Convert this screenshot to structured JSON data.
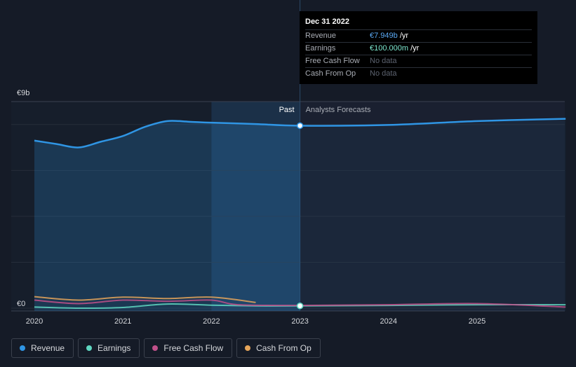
{
  "chart_data": {
    "type": "area",
    "y_top_label": "€9b",
    "y_zero_label": "€0",
    "ylim": [
      0,
      9
    ],
    "y_unit": "€b",
    "x_ticks": [
      "2020",
      "2021",
      "2022",
      "2023",
      "2024",
      "2025"
    ],
    "past_label": "Past",
    "forecast_label": "Analysts Forecasts",
    "divider_date": 2023.0,
    "highlight_range": [
      2022.0,
      2023.0
    ],
    "series": [
      {
        "name": "Revenue",
        "color": "#2f95e4",
        "fill": true,
        "points": [
          [
            2020.0,
            7.3
          ],
          [
            2020.25,
            7.15
          ],
          [
            2020.5,
            7.0
          ],
          [
            2020.75,
            7.25
          ],
          [
            2021.0,
            7.5
          ],
          [
            2021.25,
            7.9
          ],
          [
            2021.5,
            8.15
          ],
          [
            2021.75,
            8.12
          ],
          [
            2022.0,
            8.08
          ],
          [
            2022.5,
            8.02
          ],
          [
            2023.0,
            7.949
          ],
          [
            2024.0,
            7.98
          ],
          [
            2025.0,
            8.15
          ],
          [
            2026.0,
            8.25
          ]
        ]
      },
      {
        "name": "Earnings",
        "color": "#5fd7c1",
        "fill": false,
        "points": [
          [
            2020.0,
            0.05
          ],
          [
            2020.5,
            0.0
          ],
          [
            2021.0,
            0.03
          ],
          [
            2021.5,
            0.18
          ],
          [
            2022.0,
            0.13
          ],
          [
            2022.5,
            0.1
          ],
          [
            2023.0,
            0.1
          ],
          [
            2024.0,
            0.12
          ],
          [
            2025.0,
            0.15
          ],
          [
            2026.0,
            0.15
          ]
        ]
      },
      {
        "name": "Free Cash Flow",
        "color": "#c0508a",
        "fill": false,
        "points": [
          [
            2020.0,
            0.35
          ],
          [
            2020.5,
            0.2
          ],
          [
            2021.0,
            0.35
          ],
          [
            2021.5,
            0.3
          ],
          [
            2022.0,
            0.35
          ],
          [
            2022.3,
            0.15
          ],
          [
            2023.0,
            0.12
          ],
          [
            2024.0,
            0.15
          ],
          [
            2025.0,
            0.2
          ],
          [
            2026.0,
            0.05
          ]
        ]
      },
      {
        "name": "Cash From Op",
        "color": "#e5a55a",
        "fill": false,
        "points": [
          [
            2020.0,
            0.5
          ],
          [
            2020.5,
            0.35
          ],
          [
            2021.0,
            0.48
          ],
          [
            2021.5,
            0.42
          ],
          [
            2022.0,
            0.48
          ],
          [
            2022.5,
            0.25
          ]
        ]
      }
    ]
  },
  "tooltip": {
    "date": "Dec 31 2022",
    "rows": [
      {
        "label": "Revenue",
        "value": "€7.949b",
        "unit": " /yr"
      },
      {
        "label": "Earnings",
        "value": "€100.000m",
        "unit": " /yr"
      },
      {
        "label": "Free Cash Flow",
        "value": "No data",
        "unit": ""
      },
      {
        "label": "Cash From Op",
        "value": "No data",
        "unit": ""
      }
    ]
  },
  "legend": [
    {
      "label": "Revenue",
      "color": "#2f95e4"
    },
    {
      "label": "Earnings",
      "color": "#5fd7c1"
    },
    {
      "label": "Free Cash Flow",
      "color": "#c0508a"
    },
    {
      "label": "Cash From Op",
      "color": "#e5a55a"
    }
  ]
}
